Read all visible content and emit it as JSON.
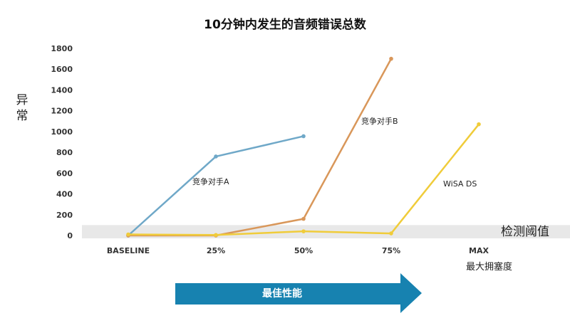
{
  "chart_data": {
    "type": "line",
    "title": "10分钟内发生的音频错误总数",
    "ylabel": "异常",
    "xlabel": "最大拥塞度",
    "categories": [
      "BASELINE",
      "25%",
      "50%",
      "75%",
      "MAX"
    ],
    "ylim": [
      0,
      1800
    ],
    "yticks": [
      0,
      200,
      400,
      600,
      800,
      1000,
      1200,
      1400,
      1600,
      1800
    ],
    "grid": false,
    "series": [
      {
        "name": "竞争对手A",
        "color": "#6fa8c8",
        "values": [
          0,
          760,
          955,
          null,
          null
        ]
      },
      {
        "name": "竞争对手B",
        "color": "#d9975a",
        "values": [
          0,
          0,
          160,
          1700,
          null
        ]
      },
      {
        "name": "WiSA DS",
        "color": "#f0cc3a",
        "values": [
          10,
          5,
          40,
          20,
          1070
        ]
      }
    ],
    "threshold": {
      "label": "检测阈值",
      "value": 100
    },
    "arrow_label": "最佳性能"
  },
  "colors": {
    "arrow": "#1782b0",
    "threshold_band": "#e8e8e8"
  }
}
